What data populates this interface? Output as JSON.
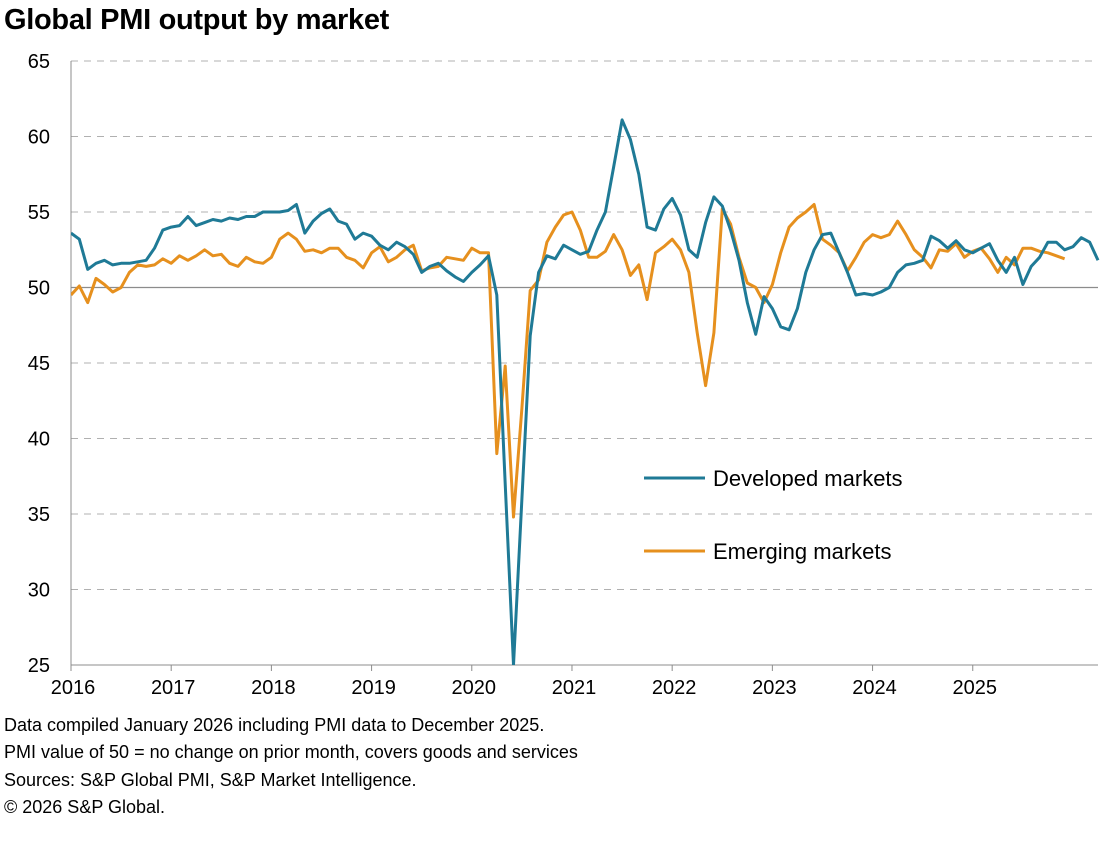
{
  "title": "Global PMI output by market",
  "footnotes": [
    "Data compiled January 2026 including PMI data to December 2025.",
    "PMI value of 50 = no change on prior month, covers goods and services",
    "Sources: S&P Global PMI, S&P Market Intelligence.",
    "© 2026 S&P Global."
  ],
  "chart_data": {
    "type": "line",
    "title": "Global PMI output by market",
    "xlabel": "",
    "ylabel": "",
    "ylim": [
      25,
      65
    ],
    "yticks": [
      25,
      30,
      35,
      40,
      45,
      50,
      55,
      60,
      65
    ],
    "xticks": [
      "2016",
      "2017",
      "2018",
      "2019",
      "2020",
      "2021",
      "2022",
      "2023",
      "2024",
      "2025"
    ],
    "x_start": "2016-01",
    "x_end": "2025-12",
    "grid": "horizontal dashed",
    "reference_line": 50,
    "legend_position": "lower-right inside plot",
    "series": [
      {
        "name": "Developed markets",
        "color": "#1f7a96",
        "values": [
          53.6,
          53.2,
          51.2,
          51.6,
          51.8,
          51.5,
          51.6,
          51.6,
          51.7,
          51.8,
          52.6,
          53.8,
          54.0,
          54.1,
          54.7,
          54.1,
          54.3,
          54.5,
          54.4,
          54.6,
          54.5,
          54.7,
          54.7,
          55.0,
          55.0,
          55.0,
          55.1,
          55.5,
          53.6,
          54.4,
          54.9,
          55.2,
          54.4,
          54.2,
          53.2,
          53.6,
          53.4,
          52.8,
          52.5,
          53.0,
          52.7,
          52.2,
          51.0,
          51.4,
          51.6,
          51.1,
          50.7,
          50.4,
          51.0,
          51.5,
          52.1,
          49.5,
          37.0,
          25.0,
          36.0,
          46.8,
          51.0,
          52.1,
          51.9,
          52.8,
          52.5,
          52.2,
          52.4,
          53.8,
          55.0,
          58.0,
          61.1,
          59.8,
          57.5,
          54.0,
          53.8,
          55.2,
          55.9,
          54.8,
          52.5,
          52.0,
          54.3,
          56.0,
          55.4,
          53.8,
          51.8,
          49.0,
          46.9,
          49.4,
          48.6,
          47.4,
          47.2,
          48.6,
          51.0,
          52.5,
          53.5,
          53.6,
          52.3,
          51.0,
          49.5,
          49.6,
          49.5,
          49.7,
          50.0,
          51.0,
          51.5,
          51.6,
          51.8,
          53.4,
          53.1,
          52.6,
          53.1,
          52.5,
          52.3,
          52.6,
          52.9,
          51.8,
          51.0,
          52.0,
          50.2,
          51.4,
          52.0,
          53.0,
          53.0,
          52.5,
          52.7,
          53.3,
          53.0,
          51.8
        ]
      },
      {
        "name": "Emerging markets",
        "color": "#e6901e",
        "values": [
          49.5,
          50.1,
          49.0,
          50.6,
          50.2,
          49.7,
          50.0,
          51.0,
          51.5,
          51.4,
          51.5,
          51.9,
          51.6,
          52.1,
          51.8,
          52.1,
          52.5,
          52.1,
          52.2,
          51.6,
          51.4,
          52.0,
          51.7,
          51.6,
          52.0,
          53.2,
          53.6,
          53.2,
          52.4,
          52.5,
          52.3,
          52.6,
          52.6,
          52.0,
          51.8,
          51.3,
          52.3,
          52.7,
          51.7,
          52.0,
          52.5,
          52.8,
          51.1,
          51.3,
          51.4,
          52.0,
          51.9,
          51.8,
          52.6,
          52.3,
          52.3,
          39.0,
          44.8,
          34.8,
          42.0,
          49.8,
          50.5,
          53.0,
          54.0,
          54.8,
          55.0,
          53.8,
          52.0,
          52.0,
          52.4,
          53.5,
          52.5,
          50.8,
          51.5,
          49.2,
          52.3,
          52.7,
          53.2,
          52.5,
          51.0,
          47.0,
          43.5,
          47.0,
          55.2,
          54.2,
          52.0,
          50.3,
          50.0,
          49.0,
          50.2,
          52.3,
          54.0,
          54.6,
          55.0,
          55.5,
          53.2,
          52.8,
          52.3,
          51.1,
          52.0,
          53.0,
          53.5,
          53.3,
          53.5,
          54.4,
          53.5,
          52.5,
          52.0,
          51.3,
          52.5,
          52.4,
          52.9,
          52.0,
          52.4,
          52.6,
          51.9,
          51.0,
          52.0,
          51.5,
          52.6,
          52.6,
          52.4,
          52.3,
          52.1,
          51.9
        ]
      }
    ]
  }
}
